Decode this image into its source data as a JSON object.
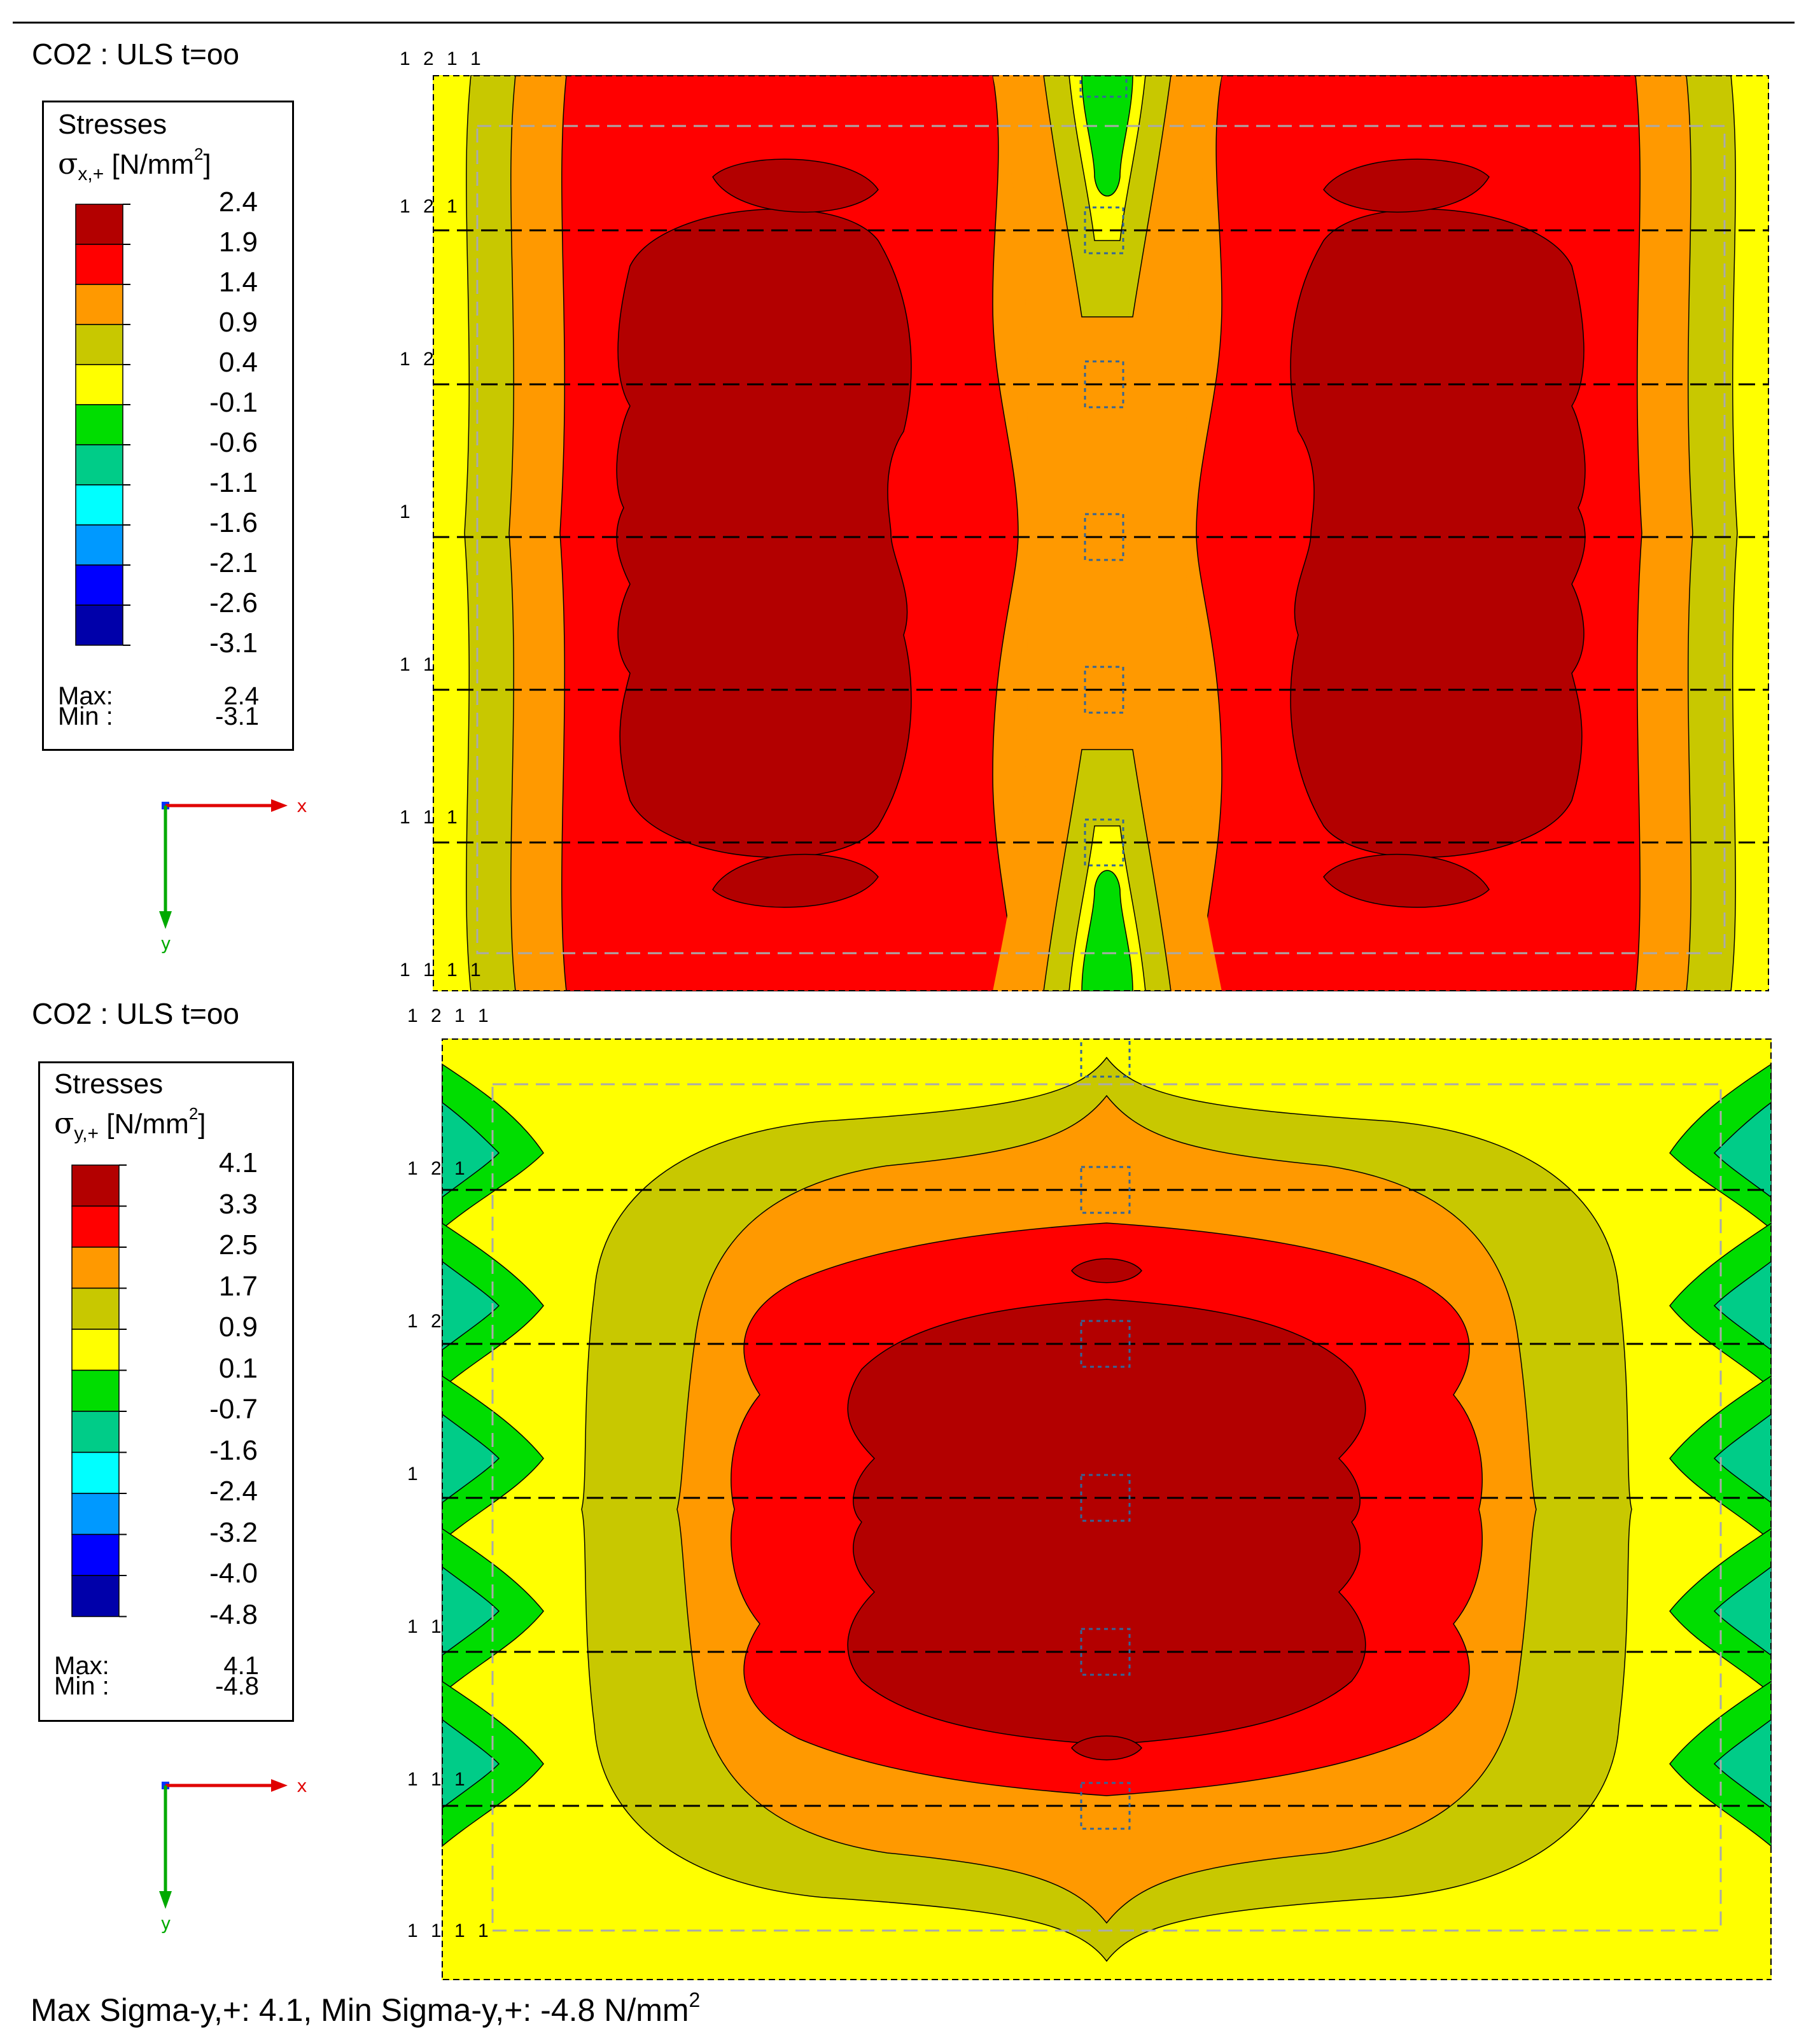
{
  "panels": [
    {
      "combo_title": "CO2 : ULS t=oo",
      "legend": {
        "title_line1": "Stresses",
        "symbol": "σ",
        "subscript": "x,+",
        "unit_text": " [N/mm",
        "unit_sup": "2",
        "unit_close": "]",
        "tick_labels": [
          "2.4",
          "1.9",
          "1.4",
          "0.9",
          "0.4",
          "-0.1",
          "-0.6",
          "-1.1",
          "-1.6",
          "-2.1",
          "-2.6",
          "-3.1"
        ],
        "colors": [
          "#b30000",
          "#ff0000",
          "#ff9900",
          "#c8c800",
          "#ffff00",
          "#00dd00",
          "#00cc88",
          "#00ffff",
          "#0099ff",
          "#0000ff",
          "#0000aa"
        ],
        "max_label": "Max:",
        "max_value": "2.4",
        "min_label": "Min :",
        "min_value": "-3.1"
      },
      "axes": {
        "x_label": "x",
        "y_label": "y"
      },
      "grid_labels": [
        "1 2 1 1",
        "1 2 1",
        "1 2",
        "1",
        "1 1",
        "1 1 1",
        "1 1 1 1"
      ]
    },
    {
      "combo_title": "CO2 : ULS t=oo",
      "legend": {
        "title_line1": "Stresses",
        "symbol": "σ",
        "subscript": "y,+",
        "unit_text": " [N/mm",
        "unit_sup": "2",
        "unit_close": "]",
        "tick_labels": [
          "4.1",
          "3.3",
          "2.5",
          "1.7",
          "0.9",
          "0.1",
          "-0.7",
          "-1.6",
          "-2.4",
          "-3.2",
          "-4.0",
          "-4.8"
        ],
        "colors": [
          "#b30000",
          "#ff0000",
          "#ff9900",
          "#c8c800",
          "#ffff00",
          "#00dd00",
          "#00cc88",
          "#00ffff",
          "#0099ff",
          "#0000ff",
          "#0000aa"
        ],
        "max_label": "Max:",
        "max_value": "4.1",
        "min_label": "Min :",
        "min_value": "-4.8"
      },
      "axes": {
        "x_label": "x",
        "y_label": "y"
      },
      "grid_labels": [
        "1 2 1 1",
        "1 2 1",
        "1 2",
        "1",
        "1 1",
        "1 1 1",
        "1 1 1 1"
      ]
    }
  ],
  "footer": {
    "text": "Max Sigma-y,+: 4.1, Min Sigma-y,+: -4.8 N/mm",
    "sup": "2"
  },
  "colors": {
    "dark_red": "#b30000",
    "red": "#ff0000",
    "orange": "#ff9900",
    "olive": "#c8c800",
    "yellow": "#ffff00",
    "green": "#00dd00",
    "teal": "#00cc88",
    "cyan": "#00ffff"
  }
}
